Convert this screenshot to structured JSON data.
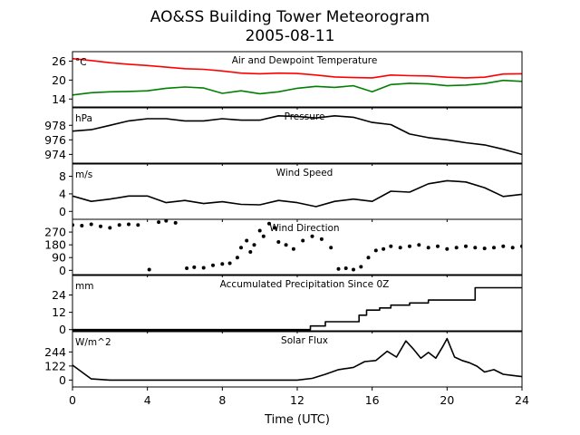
{
  "title": "AO&SS Building Tower Meteorogram",
  "subtitle": "2005-08-11",
  "xlabel": "Time (UTC)",
  "xticks": [
    0,
    4,
    8,
    12,
    16,
    20,
    24
  ],
  "xlim": [
    0,
    24
  ],
  "chart_data": [
    {
      "type": "line",
      "title": "Air and Dewpoint Temperature",
      "unit": "°C",
      "ylim": [
        11.5,
        29
      ],
      "yticks": [
        14,
        20,
        26
      ],
      "x": [
        0,
        1,
        2,
        3,
        4,
        5,
        6,
        7,
        8,
        9,
        10,
        11,
        12,
        13,
        14,
        15,
        16,
        17,
        18,
        19,
        20,
        21,
        22,
        23,
        24
      ],
      "series": [
        {
          "key": "air",
          "color": "#ff0000",
          "values": [
            26.8,
            26.2,
            25.5,
            25.0,
            24.6,
            24.1,
            23.6,
            23.4,
            22.9,
            22.2,
            22.0,
            22.2,
            22.1,
            21.6,
            21.0,
            20.8,
            20.7,
            21.6,
            21.4,
            21.3,
            20.9,
            20.7,
            20.9,
            21.9,
            22.0
          ]
        },
        {
          "key": "dewpoint",
          "color": "#008000",
          "values": [
            15.3,
            16.0,
            16.3,
            16.4,
            16.6,
            17.4,
            17.8,
            17.5,
            15.8,
            16.6,
            15.7,
            16.3,
            17.4,
            18.0,
            17.7,
            18.2,
            16.3,
            18.6,
            19.0,
            18.8,
            18.2,
            18.4,
            18.9,
            19.9,
            19.6
          ]
        }
      ]
    },
    {
      "type": "line",
      "title": "Pressure",
      "unit": "hPa",
      "ylim": [
        972.8,
        980.4
      ],
      "yticks": [
        974,
        976,
        978
      ],
      "x": [
        0,
        1,
        2,
        3,
        4,
        5,
        6,
        7,
        8,
        9,
        10,
        11,
        12,
        13,
        14,
        15,
        16,
        17,
        18,
        19,
        20,
        21,
        22,
        23,
        24
      ],
      "series": [
        {
          "key": "pressure",
          "color": "#000000",
          "values": [
            977.2,
            977.4,
            978.0,
            978.6,
            978.9,
            978.9,
            978.6,
            978.6,
            978.9,
            978.7,
            978.7,
            979.3,
            979.2,
            979.0,
            979.3,
            979.1,
            978.4,
            978.1,
            976.8,
            976.3,
            976.0,
            975.6,
            975.3,
            974.7,
            974.0
          ]
        }
      ]
    },
    {
      "type": "line",
      "title": "Wind Speed",
      "unit": "m/s",
      "ylim": [
        -1.8,
        10.8
      ],
      "yticks": [
        0,
        4,
        8
      ],
      "x": [
        0,
        1,
        2,
        3,
        4,
        5,
        6,
        7,
        8,
        9,
        10,
        11,
        12,
        13,
        14,
        15,
        16,
        17,
        18,
        19,
        20,
        21,
        22,
        23,
        24
      ],
      "series": [
        {
          "key": "wind_speed",
          "color": "#000000",
          "values": [
            3.5,
            2.3,
            2.8,
            3.5,
            3.5,
            2.0,
            2.5,
            1.8,
            2.2,
            1.6,
            1.5,
            2.5,
            2.0,
            1.1,
            2.3,
            2.8,
            2.3,
            4.6,
            4.4,
            6.3,
            7.0,
            6.7,
            5.4,
            3.4,
            3.9
          ]
        }
      ]
    },
    {
      "type": "scatter",
      "title": "Wind Direction",
      "ylim": [
        -30,
        360
      ],
      "yticks": [
        0,
        90,
        180,
        270
      ],
      "x": [
        0,
        0.5,
        1,
        1.5,
        2,
        2.5,
        3,
        3.5,
        4.1,
        4.6,
        5.0,
        5.5,
        6.1,
        6.5,
        7.0,
        7.5,
        8.0,
        8.4,
        8.8,
        9.0,
        9.3,
        9.5,
        9.7,
        10.0,
        10.2,
        10.5,
        10.8,
        11.0,
        11.4,
        11.8,
        12.3,
        12.8,
        13.3,
        13.8,
        14.2,
        14.6,
        15.0,
        15.4,
        15.8,
        16.2,
        16.6,
        17.0,
        17.5,
        18.0,
        18.5,
        19.0,
        19.5,
        20.0,
        20.5,
        21.0,
        21.5,
        22.0,
        22.5,
        23.0,
        23.5,
        24.0
      ],
      "series": [
        {
          "key": "wind_direction",
          "color": "#000000",
          "values": [
            320,
            315,
            325,
            310,
            300,
            320,
            325,
            320,
            5,
            340,
            350,
            335,
            15,
            22,
            18,
            35,
            45,
            50,
            90,
            160,
            210,
            130,
            180,
            280,
            240,
            330,
            300,
            200,
            180,
            150,
            210,
            240,
            220,
            160,
            10,
            15,
            5,
            25,
            90,
            140,
            150,
            170,
            160,
            170,
            180,
            160,
            170,
            150,
            160,
            170,
            160,
            155,
            160,
            170,
            160,
            170
          ]
        }
      ]
    },
    {
      "type": "line",
      "title": "Accumulated Precipitation Since 0Z",
      "unit": "mm",
      "ylim": [
        -0.8,
        37.5
      ],
      "yticks": [
        0,
        12,
        24
      ],
      "x": [
        0,
        12.7,
        12.7,
        13.5,
        13.5,
        15.3,
        15.3,
        15.7,
        15.7,
        16.4,
        16.4,
        17.0,
        17.0,
        18.0,
        18.0,
        19.0,
        19.0,
        21.5,
        21.5,
        24
      ],
      "series": [
        {
          "key": "precipitation",
          "color": "#000000",
          "values": [
            0,
            0,
            2.5,
            2.5,
            5.5,
            5.5,
            10,
            10,
            13.5,
            13.5,
            15,
            15,
            17,
            17,
            18.5,
            18.5,
            20.5,
            20.5,
            29,
            29
          ]
        }
      ]
    },
    {
      "type": "line",
      "title": "Solar Flux",
      "unit": "W/m^2",
      "ylim": [
        -60,
        420
      ],
      "yticks": [
        0,
        122,
        244
      ],
      "x": [
        0,
        0.5,
        1,
        2,
        3,
        4,
        5,
        6,
        7,
        8,
        9,
        10,
        11,
        12,
        12.8,
        13.5,
        14.2,
        15.0,
        15.6,
        16.2,
        16.8,
        17.3,
        17.8,
        18.2,
        18.6,
        19.0,
        19.4,
        19.8,
        20.0,
        20.4,
        20.8,
        21.2,
        21.6,
        22.0,
        22.5,
        23.0,
        23.5,
        24.0
      ],
      "series": [
        {
          "key": "solar_flux",
          "color": "#000000",
          "values": [
            130,
            70,
            10,
            0,
            0,
            0,
            0,
            0,
            0,
            0,
            0,
            0,
            0,
            0,
            15,
            50,
            90,
            110,
            160,
            170,
            250,
            200,
            340,
            270,
            190,
            240,
            190,
            300,
            360,
            200,
            170,
            150,
            120,
            70,
            90,
            50,
            40,
            30
          ]
        }
      ]
    }
  ]
}
